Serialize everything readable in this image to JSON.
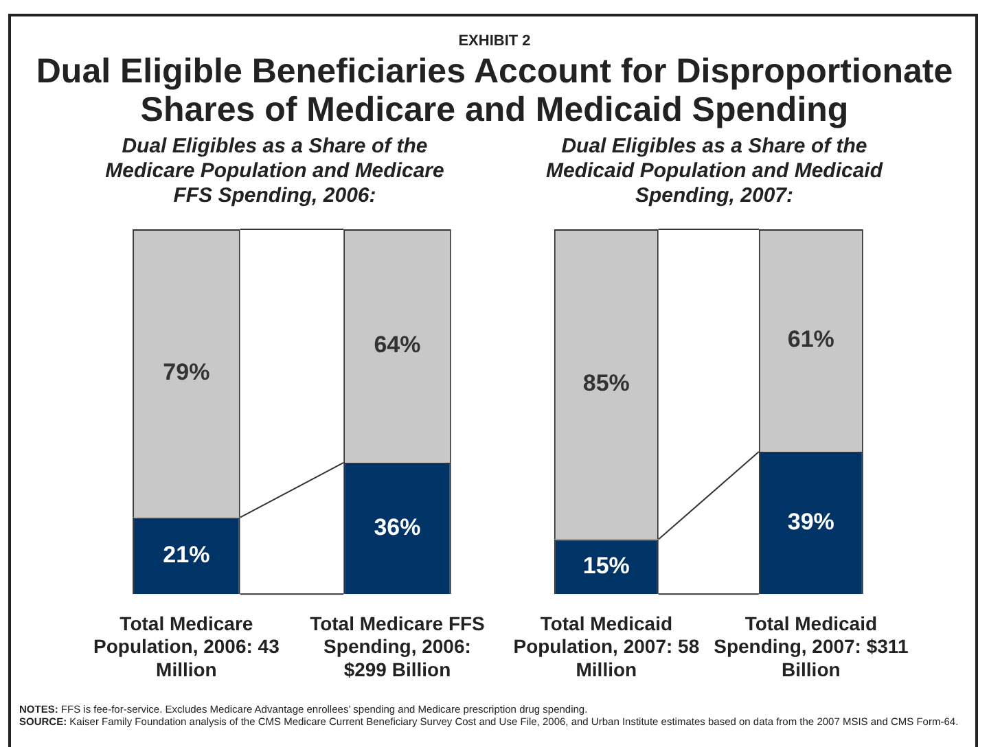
{
  "chart_data": [
    {
      "type": "bar",
      "stacked": true,
      "annotations": [
        "EXHIBIT 2"
      ],
      "title": "Dual Eligible Beneficiaries Account for Disproportionate Shares of Medicare and Medicaid Spending",
      "subtitle": "Dual Eligibles as a Share of the Medicare Population and Medicare FFS Spending, 2006:",
      "categories": [
        "Total Medicare Population, 2006: 43 Million",
        "Total Medicare FFS Spending, 2006: $299 Billion"
      ],
      "series": [
        {
          "color": "#003366",
          "values": [
            21,
            36
          ],
          "value_labels": [
            "21%",
            "36%"
          ]
        },
        {
          "color": "#c8c8c8",
          "values": [
            79,
            64
          ],
          "value_labels": [
            "79%",
            "64%"
          ]
        }
      ],
      "tick_labels": "x",
      "grid": false,
      "legend": false
    },
    {
      "type": "bar",
      "stacked": true,
      "subtitle": "Dual Eligibles as a Share of the Medicaid Population and Medicaid Spending, 2007:",
      "categories": [
        "Total Medicaid Population, 2007: 58 Million",
        "Total Medicaid Spending, 2007: $311 Billion"
      ],
      "series": [
        {
          "color": "#003366",
          "values": [
            15,
            39
          ],
          "value_labels": [
            "15%",
            "39%"
          ]
        },
        {
          "color": "#c8c8c8",
          "values": [
            85,
            61
          ],
          "value_labels": [
            "85%",
            "61%"
          ]
        }
      ],
      "tick_labels": "x",
      "grid": false,
      "legend": false,
      "annotations": [
        "NOTES: FFS is fee-for-service. Excludes Medicare Advantage enrollees’ spending and Medicare prescription drug spending.",
        "SOURCE: Kaiser Family Foundation analysis of the CMS Medicare Current Beneficiary Survey Cost and Use File, 2006, and Urban Institute estimates based on data from the 2007 MSIS and CMS Form-64."
      ]
    }
  ]
}
